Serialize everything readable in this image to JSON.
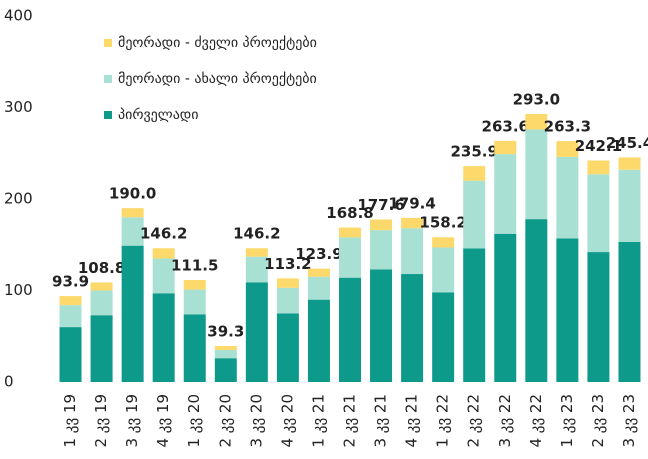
{
  "chart_data": {
    "type": "stacked_bar",
    "categories": [
      "1 კვ 19",
      "2 კვ 19",
      "3 კვ 19",
      "4 კვ 19",
      "1 კვ 20",
      "2 კვ 20",
      "3 კვ 20",
      "4 კვ 20",
      "1 კვ 21",
      "2 კვ 21",
      "3 კვ 21",
      "4 კვ 21",
      "1 კვ 22",
      "2 კვ 22",
      "3 კვ 22",
      "4 კვ 22",
      "1 კვ 23",
      "2 კვ 23",
      "3 კვ 23"
    ],
    "series": [
      {
        "name": "პირველადი",
        "color": "#0e9a8b",
        "values": [
          60,
          73,
          149,
          97,
          74,
          26,
          109,
          75,
          90,
          114,
          123,
          118,
          98,
          146,
          162,
          178,
          157,
          142,
          153
        ]
      },
      {
        "name": "მეორადი - ახალი პროექტები",
        "color": "#a8e0d4",
        "values": [
          24,
          27,
          31,
          38,
          27,
          9,
          28,
          28,
          25,
          44,
          43,
          50,
          49,
          74,
          87,
          98,
          89,
          85,
          79
        ]
      },
      {
        "name": "მეორადი - ძველი პროექტები",
        "color": "#fcd96a",
        "values": [
          9.9,
          8.8,
          10,
          11.2,
          10.5,
          4.3,
          9.2,
          10.2,
          8.9,
          10.8,
          11.6,
          11.4,
          11.2,
          15.9,
          14.6,
          17,
          17.3,
          15.1,
          13.4
        ]
      }
    ],
    "totals": {
      "values": [
        93.9,
        108.8,
        190.0,
        146.2,
        111.5,
        39.3,
        146.2,
        113.2,
        123.9,
        168.8,
        177.6,
        179.4,
        158.2,
        235.9,
        263.6,
        293.0,
        263.3,
        242.1,
        245.4
      ],
      "value_labels": [
        "93.9",
        "108.8",
        "190.0",
        "146.2",
        "111.5",
        "39.3",
        "146.2",
        "113.2",
        "123.9",
        "168.8",
        "177.6",
        "179.4",
        "158.2",
        "235.9",
        "263.6",
        "293.0",
        "263.3",
        "242.1",
        "245.4"
      ]
    },
    "ylim": [
      0,
      400
    ],
    "yticks": [
      0,
      100,
      200,
      300,
      400
    ],
    "grid": false,
    "legend": "top-left"
  }
}
